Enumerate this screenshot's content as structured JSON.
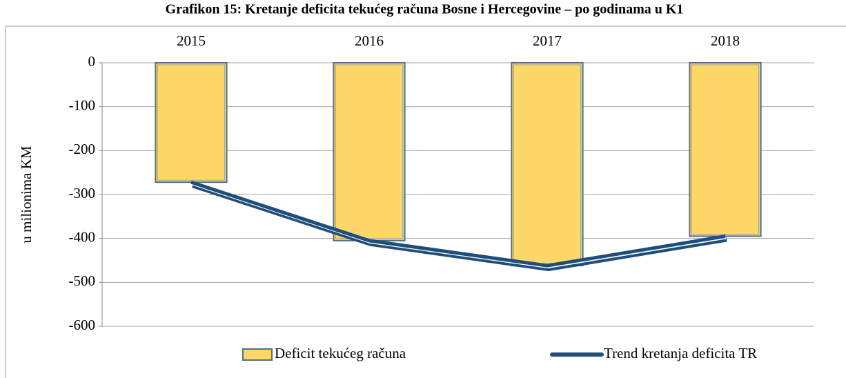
{
  "chart_data": {
    "type": "bar",
    "title": "Grafikon 15: Kretanje deficita tekućeg računa Bosne i Hercegovine – po godinama u K1",
    "y_label": "u milionima KM",
    "categories": [
      "2015",
      "2016",
      "2017",
      "2018"
    ],
    "series": [
      {
        "name": "Deficit tekućeg računa",
        "type": "bar",
        "color": "#fdd868",
        "values": [
          -272,
          -405,
          -462,
          -395
        ]
      },
      {
        "name": "Trend kretanja deficita TR",
        "type": "line",
        "color": "#1f4e79",
        "values": [
          -272,
          -405,
          -462,
          -395
        ]
      }
    ],
    "ylim": [
      -600,
      0
    ],
    "yticks": [
      0,
      -100,
      -200,
      -300,
      -400,
      -500,
      -600
    ],
    "grid": true,
    "legend": "bottom",
    "category_axis": "top"
  }
}
